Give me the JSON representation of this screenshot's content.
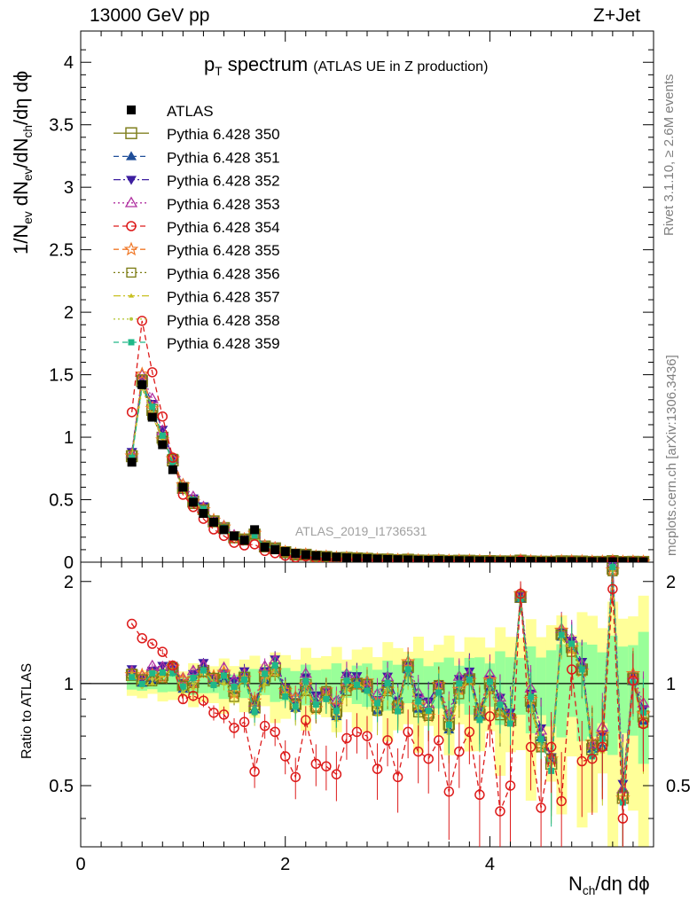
{
  "header": {
    "left": "13000 GeV pp",
    "right": "Z+Jet"
  },
  "side_labels": {
    "rivet": "Rivet 3.1.10, ≥ 2.6M events",
    "mcplots": "mcplots.cern.ch [arXiv:1306.3436]"
  },
  "watermark": "ATLAS_2019_I1736531",
  "title": {
    "main_p": "p",
    "main_sub": "T",
    "main_rest": " spectrum",
    "paren": "(ATLAS UE in Z production)"
  },
  "axes": {
    "y_main_label_parts": [
      "1/N",
      "ev",
      " dN",
      "ev",
      "/dN",
      "ch",
      "/dη dϕ"
    ],
    "y_ratio_label": "Ratio to ATLAS",
    "x_label_parts": [
      "N",
      "ch",
      "/dη dϕ"
    ]
  },
  "colors": {
    "ATLAS": "#000000",
    "Pythia 6.428 350": "#808020",
    "Pythia 6.428 351": "#1f4e99",
    "Pythia 6.428 352": "#3d1fa0",
    "Pythia 6.428 353": "#b030a0",
    "Pythia 6.428 354": "#dd1a1a",
    "Pythia 6.428 355": "#f07828",
    "Pythia 6.428 356": "#7a7a10",
    "Pythia 6.428 357": "#c8c020",
    "Pythia 6.428 358": "#b8c83c",
    "Pythia 6.428 359": "#20b888",
    "band_yellow": "#ffff99",
    "band_green": "#99ff99"
  },
  "chart_data": {
    "type": "scatter",
    "x_range": [
      0,
      5.6
    ],
    "main": {
      "ylim": [
        0,
        4.25
      ],
      "y_ticks": [
        "0",
        "0.5",
        "1",
        "1.5",
        "2",
        "2.5",
        "3",
        "3.5",
        "4"
      ],
      "x_ticks": [
        "0",
        "2",
        "4"
      ]
    },
    "ratio": {
      "ylim": [
        0.33,
        2.28
      ],
      "y_ticks_left": [
        "0.5",
        "1",
        "2"
      ],
      "y_ticks_right": [
        "0.5",
        "1",
        "2"
      ]
    },
    "x": [
      0.5,
      0.6,
      0.7,
      0.8,
      0.9,
      1.0,
      1.1,
      1.2,
      1.3,
      1.4,
      1.5,
      1.6,
      1.7,
      1.8,
      1.9,
      2.0,
      2.1,
      2.2,
      2.3,
      2.4,
      2.5,
      2.6,
      2.7,
      2.8,
      2.9,
      3.0,
      3.1,
      3.2,
      3.3,
      3.4,
      3.5,
      3.6,
      3.7,
      3.8,
      3.9,
      4.0,
      4.1,
      4.2,
      4.3,
      4.4,
      4.5,
      4.6,
      4.7,
      4.8,
      4.9,
      5.0,
      5.1,
      5.2,
      5.3,
      5.4,
      5.5
    ],
    "atlas_values": [
      0.8,
      1.42,
      1.16,
      0.94,
      0.74,
      0.6,
      0.48,
      0.39,
      0.32,
      0.26,
      0.21,
      0.175,
      0.26,
      0.12,
      0.1,
      0.085,
      0.07,
      0.06,
      0.052,
      0.045,
      0.04,
      0.035,
      0.031,
      0.028,
      0.025,
      0.022,
      0.02,
      0.018,
      0.016,
      0.015,
      0.014,
      0.013,
      0.012,
      0.011,
      0.01,
      0.009,
      0.008,
      0.008,
      0.007,
      0.007,
      0.006,
      0.006,
      0.005,
      0.005,
      0.005,
      0.004,
      0.004,
      0.004,
      0.004,
      0.003,
      0.003
    ],
    "band_yellow": [
      0.08,
      0.08,
      0.09,
      0.1,
      0.1,
      0.11,
      0.12,
      0.13,
      0.14,
      0.15,
      0.16,
      0.17,
      0.18,
      0.19,
      0.2,
      0.21,
      0.22,
      0.22,
      0.22,
      0.22,
      0.23,
      0.23,
      0.24,
      0.25,
      0.26,
      0.27,
      0.28,
      0.29,
      0.3,
      0.3,
      0.31,
      0.32,
      0.32,
      0.33,
      0.34,
      0.36,
      0.38,
      0.4,
      0.42,
      0.44,
      0.46,
      0.48,
      0.5,
      0.52,
      0.54,
      0.56,
      0.58,
      0.6,
      0.62,
      0.64,
      0.66
    ],
    "band_green": [
      0.04,
      0.04,
      0.05,
      0.05,
      0.05,
      0.06,
      0.06,
      0.07,
      0.07,
      0.08,
      0.08,
      0.09,
      0.09,
      0.1,
      0.1,
      0.11,
      0.11,
      0.11,
      0.11,
      0.11,
      0.12,
      0.12,
      0.12,
      0.13,
      0.13,
      0.14,
      0.14,
      0.15,
      0.15,
      0.15,
      0.16,
      0.16,
      0.17,
      0.17,
      0.18,
      0.19,
      0.2,
      0.21,
      0.22,
      0.23,
      0.24,
      0.25,
      0.26,
      0.27,
      0.28,
      0.29,
      0.3,
      0.31,
      0.32,
      0.33,
      0.34
    ],
    "series": [
      {
        "name": "ATLAS",
        "marker": "square-filled",
        "line": "none"
      },
      {
        "name": "Pythia 6.428 350",
        "marker": "square-open",
        "line": "solid",
        "bias": 0.02,
        "values": [
          1.06,
          1.02,
          1.05,
          1.06,
          1.1,
          0.99,
          1.01,
          1.09,
          1.02,
          1.05,
          0.95,
          1.04,
          0.85,
          1.05,
          1.11,
          0.94,
          0.87,
          0.99,
          0.86,
          0.93,
          0.83,
          0.99,
          1.0,
          0.98,
          0.86,
          0.98,
          0.85,
          1.12,
          0.86,
          0.82,
          0.97,
          0.76,
          0.97,
          1.03,
          0.81,
          1.0,
          0.84,
          0.78,
          1.8,
          0.89,
          0.67,
          0.58,
          1.4,
          1.28,
          1.1,
          0.64,
          0.68,
          2.18,
          0.46,
          1.03,
          0.8
        ]
      },
      {
        "name": "Pythia 6.428 351",
        "marker": "triangle-up-filled",
        "line": "dashed",
        "bias": 0.0
      },
      {
        "name": "Pythia 6.428 352",
        "marker": "triangle-down-filled",
        "line": "dashdot",
        "bias": 0.04
      },
      {
        "name": "Pythia 6.428 353",
        "marker": "triangle-up-open",
        "line": "dotted",
        "bias": 0.05
      },
      {
        "name": "Pythia 6.428 354",
        "marker": "circle-open",
        "line": "dashed",
        "values": [
          1.5,
          1.36,
          1.31,
          1.24,
          1.13,
          0.9,
          0.92,
          0.89,
          0.82,
          0.81,
          0.74,
          0.77,
          0.55,
          0.75,
          0.72,
          0.61,
          0.53,
          0.78,
          0.58,
          0.57,
          0.54,
          0.69,
          0.72,
          0.7,
          0.56,
          0.68,
          0.53,
          0.72,
          0.63,
          0.6,
          0.68,
          0.48,
          0.63,
          0.72,
          0.47,
          0.8,
          0.42,
          0.5,
          1.84,
          0.65,
          0.43,
          0.65,
          0.45,
          1.1,
          0.59,
          0.6,
          0.65,
          1.9,
          0.4,
          1.02,
          0.76
        ]
      },
      {
        "name": "Pythia 6.428 355",
        "marker": "star-open",
        "line": "dashed",
        "bias": 0.01
      },
      {
        "name": "Pythia 6.428 356",
        "marker": "square-open-small",
        "line": "dotted",
        "bias": -0.01
      },
      {
        "name": "Pythia 6.428 357",
        "marker": "tri-small",
        "line": "dashdot",
        "bias": -0.02
      },
      {
        "name": "Pythia 6.428 358",
        "marker": "dot-small",
        "line": "dotted",
        "bias": -0.015
      },
      {
        "name": "Pythia 6.428 359",
        "marker": "square-filled-small",
        "line": "dashed",
        "bias": 0.0
      }
    ]
  }
}
